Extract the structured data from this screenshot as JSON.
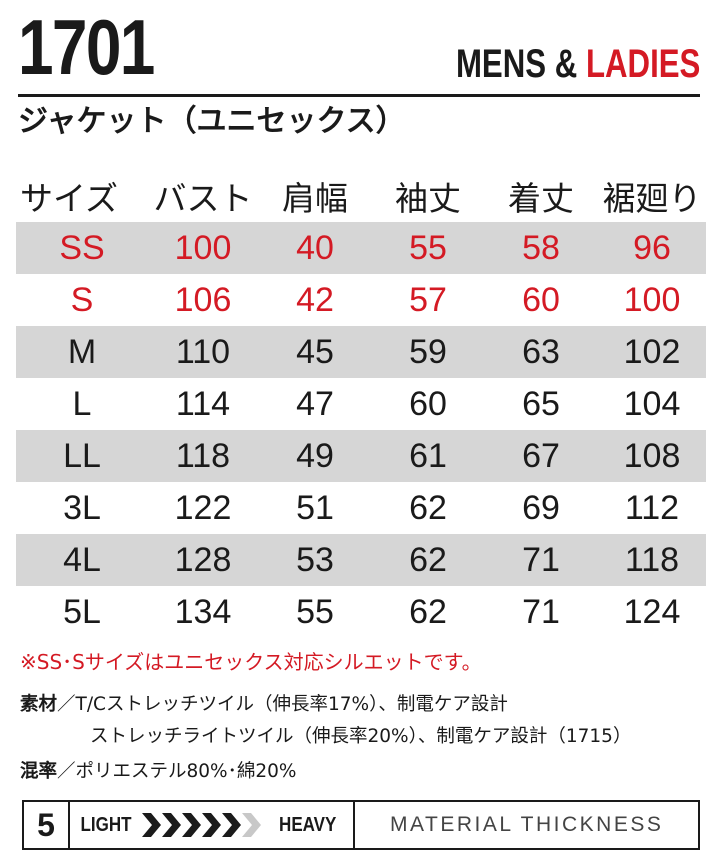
{
  "header": {
    "model": "1701",
    "gender_mens": "MENS & ",
    "gender_ladies": "LADIES",
    "product_name": "ジャケット（ユニセックス）"
  },
  "size_table": {
    "columns": [
      "サイズ",
      "バスト",
      "肩幅",
      "袖丈",
      "着丈",
      "裾廻り"
    ],
    "rows": [
      {
        "size": "SS",
        "values": [
          "100",
          "40",
          "55",
          "58",
          "96"
        ],
        "highlight": true
      },
      {
        "size": "S",
        "values": [
          "106",
          "42",
          "57",
          "60",
          "100"
        ],
        "highlight": true
      },
      {
        "size": "M",
        "values": [
          "110",
          "45",
          "59",
          "63",
          "102"
        ],
        "highlight": false
      },
      {
        "size": "L",
        "values": [
          "114",
          "47",
          "60",
          "65",
          "104"
        ],
        "highlight": false
      },
      {
        "size": "LL",
        "values": [
          "118",
          "49",
          "61",
          "67",
          "108"
        ],
        "highlight": false
      },
      {
        "size": "3L",
        "values": [
          "122",
          "51",
          "62",
          "69",
          "112"
        ],
        "highlight": false
      },
      {
        "size": "4L",
        "values": [
          "128",
          "53",
          "62",
          "71",
          "118"
        ],
        "highlight": false
      },
      {
        "size": "5L",
        "values": [
          "134",
          "55",
          "62",
          "71",
          "124"
        ],
        "highlight": false
      }
    ]
  },
  "note": "※SS･Sサイズはユニセックス対応シルエットです。",
  "specs": {
    "material_label": "素材",
    "material_line1": "／T/Cストレッチツイル（伸長率17%）、制電ケア設計",
    "material_line2": "ストレッチライトツイル（伸長率20%）、制電ケア設計（1715）",
    "blend_label": "混率",
    "blend_value": "／ポリエステル80%･綿20%"
  },
  "thickness": {
    "level": "5",
    "level_value": 5,
    "level_max": 6,
    "light_label": "LIGHT",
    "heavy_label": "HEAVY",
    "caption": "MATERIAL THICKNESS"
  },
  "colors": {
    "accent_red": "#d41a24",
    "row_shade": "#d6d6d6",
    "chevron_active": "#1a1a1a",
    "chevron_inactive": "#c8c8c8"
  }
}
